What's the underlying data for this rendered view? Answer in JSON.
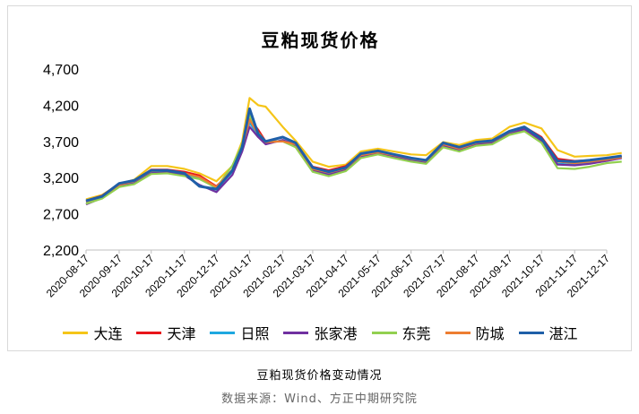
{
  "chart_data": {
    "type": "line",
    "title": "豆粕现货价格",
    "xlabel": "",
    "ylabel": "",
    "ylim": [
      2200,
      4700
    ],
    "yticks": [
      "2,200",
      "2,700",
      "3,200",
      "3,700",
      "4,200",
      "4,700"
    ],
    "ytick_values": [
      2200,
      2700,
      3200,
      3700,
      4200,
      4700
    ],
    "xticks": [
      "2020-08-17",
      "2020-09-17",
      "2020-10-17",
      "2020-11-17",
      "2020-12-17",
      "2021-01-17",
      "2021-02-17",
      "2021-03-17",
      "2021-04-17",
      "2021-05-17",
      "2021-06-17",
      "2021-07-17",
      "2021-08-17",
      "2021-09-17",
      "2021-10-17",
      "2021-11-17",
      "2021-12-17"
    ],
    "x": [
      "2020-08-17",
      "2020-09-01",
      "2020-09-17",
      "2020-10-01",
      "2020-10-17",
      "2020-11-01",
      "2020-11-17",
      "2020-12-01",
      "2020-12-17",
      "2021-01-01",
      "2021-01-10",
      "2021-01-17",
      "2021-01-25",
      "2021-02-01",
      "2021-02-17",
      "2021-03-01",
      "2021-03-17",
      "2021-04-01",
      "2021-04-17",
      "2021-05-01",
      "2021-05-17",
      "2021-06-01",
      "2021-06-17",
      "2021-07-01",
      "2021-07-17",
      "2021-08-01",
      "2021-08-17",
      "2021-09-01",
      "2021-09-17",
      "2021-10-01",
      "2021-10-17",
      "2021-11-01",
      "2021-11-17",
      "2021-12-01",
      "2021-12-17",
      "2021-12-31"
    ],
    "series": [
      {
        "name": "大连",
        "color": "#f5c518",
        "values": [
          2900,
          2960,
          3110,
          3170,
          3360,
          3360,
          3320,
          3260,
          3150,
          3360,
          3700,
          4300,
          4200,
          4180,
          3900,
          3710,
          3420,
          3350,
          3380,
          3560,
          3600,
          3560,
          3520,
          3510,
          3690,
          3650,
          3720,
          3740,
          3900,
          3960,
          3880,
          3580,
          3490,
          3500,
          3510,
          3540
        ]
      },
      {
        "name": "天津",
        "color": "#e8141a",
        "values": [
          2880,
          2950,
          3120,
          3160,
          3310,
          3310,
          3280,
          3230,
          3080,
          3300,
          3640,
          4020,
          3860,
          3700,
          3700,
          3680,
          3350,
          3300,
          3360,
          3520,
          3560,
          3510,
          3470,
          3430,
          3660,
          3600,
          3680,
          3700,
          3830,
          3900,
          3760,
          3460,
          3430,
          3440,
          3460,
          3500
        ]
      },
      {
        "name": "日照",
        "color": "#1fa8e0",
        "values": [
          2860,
          2930,
          3090,
          3130,
          3280,
          3290,
          3250,
          3200,
          3050,
          3280,
          3600,
          3960,
          3780,
          3680,
          3710,
          3640,
          3300,
          3250,
          3320,
          3500,
          3540,
          3500,
          3450,
          3420,
          3650,
          3590,
          3670,
          3690,
          3830,
          3880,
          3720,
          3390,
          3380,
          3400,
          3440,
          3470
        ]
      },
      {
        "name": "张家港",
        "color": "#7030a0",
        "values": [
          2830,
          2920,
          3080,
          3120,
          3260,
          3270,
          3230,
          3100,
          3000,
          3240,
          3560,
          3900,
          3760,
          3660,
          3720,
          3650,
          3300,
          3240,
          3310,
          3490,
          3530,
          3490,
          3430,
          3400,
          3640,
          3580,
          3660,
          3680,
          3800,
          3870,
          3700,
          3380,
          3370,
          3390,
          3430,
          3470
        ]
      },
      {
        "name": "东莞",
        "color": "#92d050",
        "values": [
          2840,
          2910,
          3070,
          3110,
          3250,
          3260,
          3220,
          3180,
          3060,
          3370,
          3660,
          4060,
          3820,
          3700,
          3700,
          3620,
          3280,
          3220,
          3290,
          3470,
          3520,
          3470,
          3420,
          3390,
          3620,
          3560,
          3640,
          3660,
          3790,
          3840,
          3680,
          3330,
          3320,
          3350,
          3400,
          3420
        ]
      },
      {
        "name": "防城",
        "color": "#ed7d31",
        "values": [
          2870,
          2940,
          3100,
          3150,
          3290,
          3300,
          3260,
          3210,
          3070,
          3310,
          3620,
          4000,
          3800,
          3690,
          3700,
          3660,
          3320,
          3270,
          3330,
          3510,
          3550,
          3510,
          3460,
          3430,
          3660,
          3600,
          3680,
          3700,
          3830,
          3900,
          3740,
          3420,
          3400,
          3420,
          3450,
          3480
        ]
      },
      {
        "name": "湛江",
        "color": "#1f5fa8",
        "values": [
          2880,
          2940,
          3120,
          3160,
          3300,
          3300,
          3260,
          3080,
          3040,
          3300,
          3620,
          4150,
          3800,
          3700,
          3760,
          3680,
          3340,
          3280,
          3340,
          3530,
          3570,
          3520,
          3470,
          3440,
          3680,
          3620,
          3690,
          3710,
          3840,
          3900,
          3740,
          3430,
          3420,
          3440,
          3470,
          3500
        ]
      }
    ]
  },
  "caption": "豆粕现货价格变动情况",
  "source": "数据来源：Wind、方正中期研究院"
}
